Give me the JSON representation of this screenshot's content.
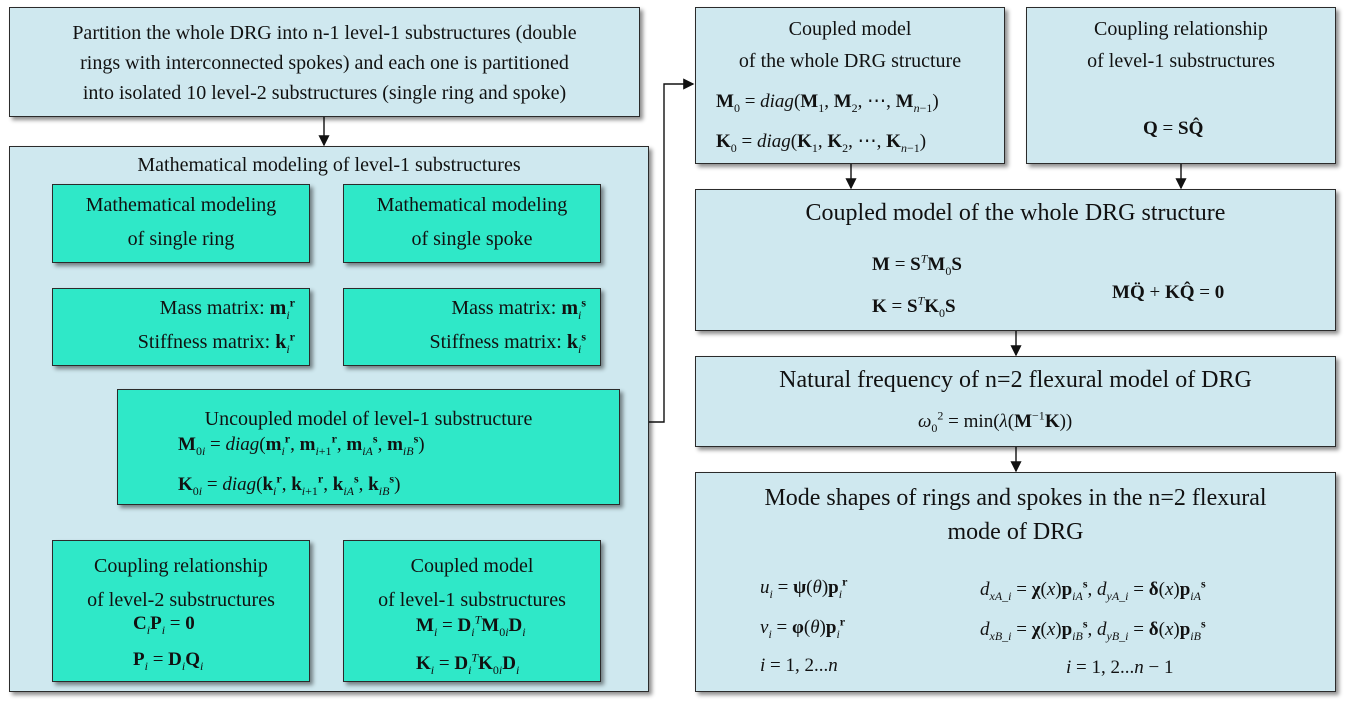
{
  "top_box": {
    "line1": "Partition the whole DRG into n-1 level-1 substructures (double",
    "line2": "rings with interconnected spokes) and each one is partitioned",
    "line3": "into isolated 10 level-2 substructures (single ring and spoke)"
  },
  "math_container": {
    "title": "Mathematical modeling of level-1 substructures"
  },
  "ring_modeling": {
    "line1": "Mathematical modeling",
    "line2": "of single ring"
  },
  "spoke_modeling": {
    "line1": "Mathematical modeling",
    "line2": "of single spoke"
  },
  "ring_matrices": {
    "mass": "Mass matrix:",
    "stiffness": "Stiffness matrix:"
  },
  "spoke_matrices": {
    "mass": "Mass matrix:",
    "stiffness": "Stiffness matrix:"
  },
  "uncoupled_model": {
    "title": "Uncoupled model of level-1 substructure"
  },
  "coupling_level2": {
    "line1": "Coupling relationship",
    "line2": "of level-2 substructures"
  },
  "coupled_level1": {
    "line1": "Coupled model",
    "line2": "of level-1 substructures"
  },
  "coupled_whole_top": {
    "line1": "Coupled model",
    "line2": "of the whole DRG structure"
  },
  "coupling_level1": {
    "line1": "Coupling relationship",
    "line2": "of level-1 substructures"
  },
  "coupled_whole": {
    "title": "Coupled model of the whole DRG structure"
  },
  "natural_freq": {
    "title": "Natural frequency of n=2 flexural model of DRG"
  },
  "mode_shapes": {
    "line1": "Mode shapes of rings and spokes in the n=2 flexural",
    "line2": "mode of DRG"
  }
}
